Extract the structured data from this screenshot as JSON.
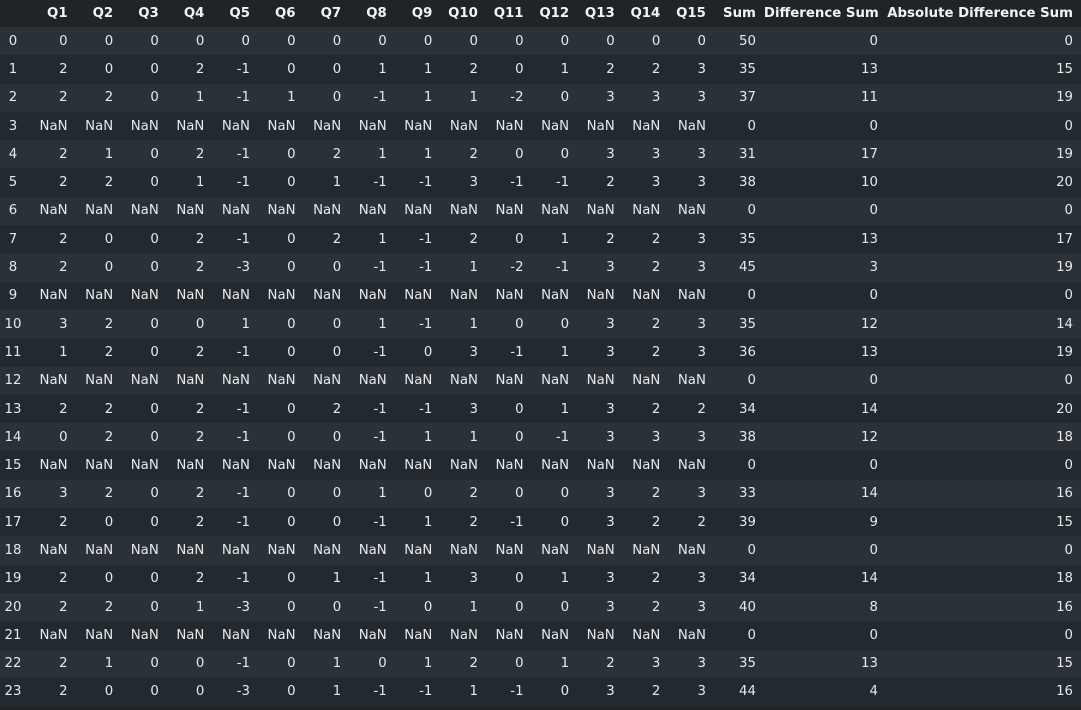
{
  "table": {
    "index_header": "",
    "columns": [
      "Q1",
      "Q2",
      "Q3",
      "Q4",
      "Q5",
      "Q6",
      "Q7",
      "Q8",
      "Q9",
      "Q10",
      "Q11",
      "Q12",
      "Q13",
      "Q14",
      "Q15",
      "Sum",
      "Difference Sum",
      "Absolute Difference Sum"
    ],
    "rows": [
      {
        "index": "0",
        "cells": [
          "0",
          "0",
          "0",
          "0",
          "0",
          "0",
          "0",
          "0",
          "0",
          "0",
          "0",
          "0",
          "0",
          "0",
          "0",
          "50",
          "0",
          "0"
        ]
      },
      {
        "index": "1",
        "cells": [
          "2",
          "0",
          "0",
          "2",
          "-1",
          "0",
          "0",
          "1",
          "1",
          "2",
          "0",
          "1",
          "2",
          "2",
          "3",
          "35",
          "13",
          "15"
        ]
      },
      {
        "index": "2",
        "cells": [
          "2",
          "2",
          "0",
          "1",
          "-1",
          "1",
          "0",
          "-1",
          "1",
          "1",
          "-2",
          "0",
          "3",
          "3",
          "3",
          "37",
          "11",
          "19"
        ]
      },
      {
        "index": "3",
        "cells": [
          "NaN",
          "NaN",
          "NaN",
          "NaN",
          "NaN",
          "NaN",
          "NaN",
          "NaN",
          "NaN",
          "NaN",
          "NaN",
          "NaN",
          "NaN",
          "NaN",
          "NaN",
          "0",
          "0",
          "0"
        ]
      },
      {
        "index": "4",
        "cells": [
          "2",
          "1",
          "0",
          "2",
          "-1",
          "0",
          "2",
          "1",
          "1",
          "2",
          "0",
          "0",
          "3",
          "3",
          "3",
          "31",
          "17",
          "19"
        ]
      },
      {
        "index": "5",
        "cells": [
          "2",
          "2",
          "0",
          "1",
          "-1",
          "0",
          "1",
          "-1",
          "-1",
          "3",
          "-1",
          "-1",
          "2",
          "3",
          "3",
          "38",
          "10",
          "20"
        ]
      },
      {
        "index": "6",
        "cells": [
          "NaN",
          "NaN",
          "NaN",
          "NaN",
          "NaN",
          "NaN",
          "NaN",
          "NaN",
          "NaN",
          "NaN",
          "NaN",
          "NaN",
          "NaN",
          "NaN",
          "NaN",
          "0",
          "0",
          "0"
        ]
      },
      {
        "index": "7",
        "cells": [
          "2",
          "0",
          "0",
          "2",
          "-1",
          "0",
          "2",
          "1",
          "-1",
          "2",
          "0",
          "1",
          "2",
          "2",
          "3",
          "35",
          "13",
          "17"
        ]
      },
      {
        "index": "8",
        "cells": [
          "2",
          "0",
          "0",
          "2",
          "-3",
          "0",
          "0",
          "-1",
          "-1",
          "1",
          "-2",
          "-1",
          "3",
          "2",
          "3",
          "45",
          "3",
          "19"
        ]
      },
      {
        "index": "9",
        "cells": [
          "NaN",
          "NaN",
          "NaN",
          "NaN",
          "NaN",
          "NaN",
          "NaN",
          "NaN",
          "NaN",
          "NaN",
          "NaN",
          "NaN",
          "NaN",
          "NaN",
          "NaN",
          "0",
          "0",
          "0"
        ]
      },
      {
        "index": "10",
        "cells": [
          "3",
          "2",
          "0",
          "0",
          "1",
          "0",
          "0",
          "1",
          "-1",
          "1",
          "0",
          "0",
          "3",
          "2",
          "3",
          "35",
          "12",
          "14"
        ]
      },
      {
        "index": "11",
        "cells": [
          "1",
          "2",
          "0",
          "2",
          "-1",
          "0",
          "0",
          "-1",
          "0",
          "3",
          "-1",
          "1",
          "3",
          "2",
          "3",
          "36",
          "13",
          "19"
        ]
      },
      {
        "index": "12",
        "cells": [
          "NaN",
          "NaN",
          "NaN",
          "NaN",
          "NaN",
          "NaN",
          "NaN",
          "NaN",
          "NaN",
          "NaN",
          "NaN",
          "NaN",
          "NaN",
          "NaN",
          "NaN",
          "0",
          "0",
          "0"
        ]
      },
      {
        "index": "13",
        "cells": [
          "2",
          "2",
          "0",
          "2",
          "-1",
          "0",
          "2",
          "-1",
          "-1",
          "3",
          "0",
          "1",
          "3",
          "2",
          "2",
          "34",
          "14",
          "20"
        ]
      },
      {
        "index": "14",
        "cells": [
          "0",
          "2",
          "0",
          "2",
          "-1",
          "0",
          "0",
          "-1",
          "1",
          "1",
          "0",
          "-1",
          "3",
          "3",
          "3",
          "38",
          "12",
          "18"
        ]
      },
      {
        "index": "15",
        "cells": [
          "NaN",
          "NaN",
          "NaN",
          "NaN",
          "NaN",
          "NaN",
          "NaN",
          "NaN",
          "NaN",
          "NaN",
          "NaN",
          "NaN",
          "NaN",
          "NaN",
          "NaN",
          "0",
          "0",
          "0"
        ]
      },
      {
        "index": "16",
        "cells": [
          "3",
          "2",
          "0",
          "2",
          "-1",
          "0",
          "0",
          "1",
          "0",
          "2",
          "0",
          "0",
          "3",
          "2",
          "3",
          "33",
          "14",
          "16"
        ]
      },
      {
        "index": "17",
        "cells": [
          "2",
          "0",
          "0",
          "2",
          "-1",
          "0",
          "0",
          "-1",
          "1",
          "2",
          "-1",
          "0",
          "3",
          "2",
          "2",
          "39",
          "9",
          "15"
        ]
      },
      {
        "index": "18",
        "cells": [
          "NaN",
          "NaN",
          "NaN",
          "NaN",
          "NaN",
          "NaN",
          "NaN",
          "NaN",
          "NaN",
          "NaN",
          "NaN",
          "NaN",
          "NaN",
          "NaN",
          "NaN",
          "0",
          "0",
          "0"
        ]
      },
      {
        "index": "19",
        "cells": [
          "2",
          "0",
          "0",
          "2",
          "-1",
          "0",
          "1",
          "-1",
          "1",
          "3",
          "0",
          "1",
          "3",
          "2",
          "3",
          "34",
          "14",
          "18"
        ]
      },
      {
        "index": "20",
        "cells": [
          "2",
          "2",
          "0",
          "1",
          "-3",
          "0",
          "0",
          "-1",
          "0",
          "1",
          "0",
          "0",
          "3",
          "2",
          "3",
          "40",
          "8",
          "16"
        ]
      },
      {
        "index": "21",
        "cells": [
          "NaN",
          "NaN",
          "NaN",
          "NaN",
          "NaN",
          "NaN",
          "NaN",
          "NaN",
          "NaN",
          "NaN",
          "NaN",
          "NaN",
          "NaN",
          "NaN",
          "NaN",
          "0",
          "0",
          "0"
        ]
      },
      {
        "index": "22",
        "cells": [
          "2",
          "1",
          "0",
          "0",
          "-1",
          "0",
          "1",
          "0",
          "1",
          "2",
          "0",
          "1",
          "2",
          "3",
          "3",
          "35",
          "13",
          "15"
        ]
      },
      {
        "index": "23",
        "cells": [
          "2",
          "0",
          "0",
          "0",
          "-3",
          "0",
          "1",
          "-1",
          "-1",
          "1",
          "-1",
          "0",
          "3",
          "2",
          "3",
          "44",
          "4",
          "16"
        ]
      }
    ]
  },
  "colors": {
    "background": "#1e2428",
    "row_even": "#2b3237",
    "row_odd": "#222a2f",
    "text": "#e6e8ea"
  }
}
